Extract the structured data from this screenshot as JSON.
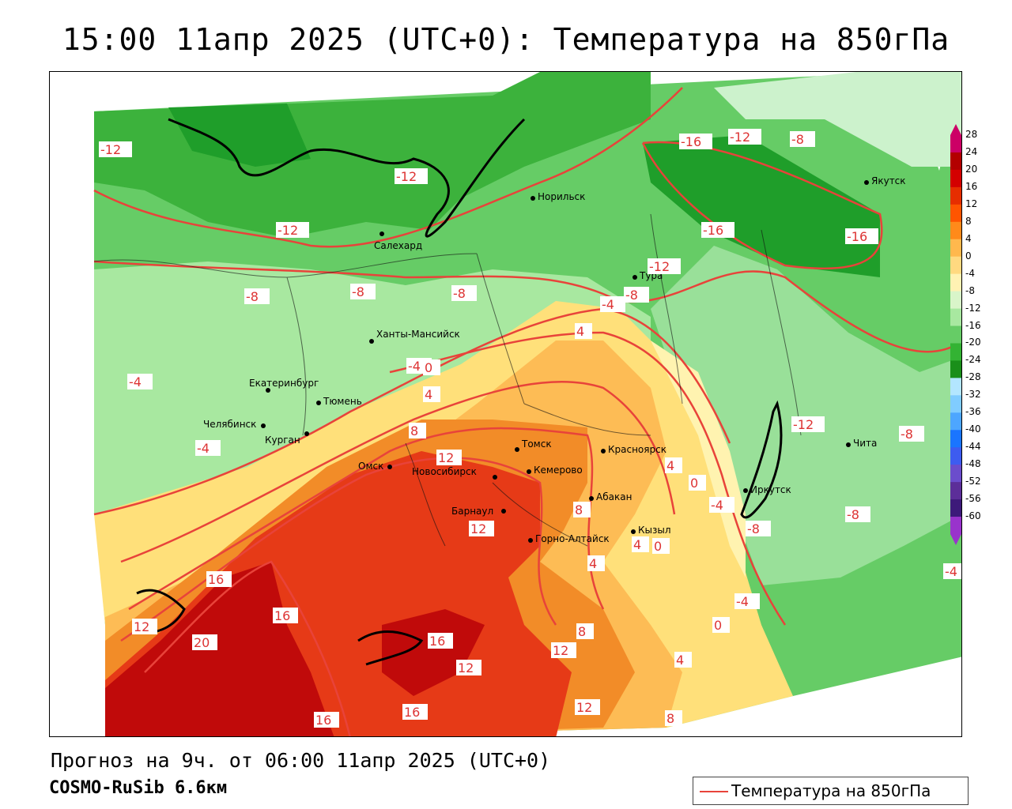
{
  "title": "15:00 11апр 2025 (UTC+0): Температура на 850гПа",
  "forecast_line": "Прогноз на 9ч. от 06:00 11апр 2025 (UTC+0)",
  "model_line": "COSMO-RuSib 6.6км",
  "legend": {
    "label": "Температура на 850гПа",
    "line_color": "#e8433a"
  },
  "colors": {
    "green_dark": "#1f9e2a",
    "green": "#3cb23c",
    "green_mid": "#66cc66",
    "green_light": "#99e099",
    "green_pale": "#ccf2cc",
    "yellow_pale": "#fff3b0",
    "yellow": "#ffe07a",
    "orange_light": "#fdbc55",
    "orange": "#f28c28",
    "orange_red": "#ef5e1e",
    "red": "#e63a17",
    "dark_red": "#c00a0a",
    "isoline": "#e8433a"
  },
  "color_scale": {
    "ticks": [
      "28",
      "24",
      "20",
      "16",
      "12",
      "8",
      "4",
      "0",
      "-4",
      "-8",
      "-12",
      "-16",
      "-20",
      "-24",
      "-28",
      "-32",
      "-36",
      "-40",
      "-44",
      "-48",
      "-52",
      "-56",
      "-60"
    ],
    "colors": [
      "#cc0066",
      "#b30000",
      "#d40000",
      "#e62e00",
      "#ff5500",
      "#ff8a1a",
      "#ffb84d",
      "#ffd980",
      "#fff2b3",
      "#d9f5c9",
      "#a8e8a0",
      "#66cc66",
      "#33b333",
      "#1a8f1a",
      "#b3e6ff",
      "#80ccff",
      "#4da6ff",
      "#1a75ff",
      "#3d5cf0",
      "#6b4dcc",
      "#5c2e99",
      "#3d1a7a",
      "#9933cc"
    ]
  },
  "cities": [
    {
      "name": "Якутск"
    },
    {
      "name": "Норильск"
    },
    {
      "name": "Салехард"
    },
    {
      "name": "Тура"
    },
    {
      "name": "Ханты-Мансийск"
    },
    {
      "name": "Екатеринбург"
    },
    {
      "name": "Тюмень"
    },
    {
      "name": "Челябинск"
    },
    {
      "name": "Курган"
    },
    {
      "name": "Омск"
    },
    {
      "name": "Новосибирск"
    },
    {
      "name": "Томск"
    },
    {
      "name": "Кемерово"
    },
    {
      "name": "Красноярск"
    },
    {
      "name": "Абакан"
    },
    {
      "name": "Барнаул"
    },
    {
      "name": "Горно-Алтайск"
    },
    {
      "name": "Кызыл"
    },
    {
      "name": "Иркутск"
    },
    {
      "name": "Чита"
    }
  ],
  "isotherm_labels": [
    "-12",
    "-12",
    "-12",
    "-8",
    "-8",
    "-8",
    "-16",
    "-12",
    "-8",
    "-16",
    "-16",
    "-12",
    "-8",
    "-4",
    "-4",
    "4",
    "-4",
    "0",
    "4",
    "8",
    "12",
    "4",
    "8",
    "12",
    "0",
    "-4",
    "-8",
    "-12",
    "-8",
    "-4",
    "-8",
    "16",
    "16",
    "12",
    "20",
    "16",
    "12",
    "8",
    "12",
    "16",
    "16",
    "12",
    "8",
    "4",
    "0",
    "-4",
    "4",
    "0",
    "4",
    "-4"
  ]
}
